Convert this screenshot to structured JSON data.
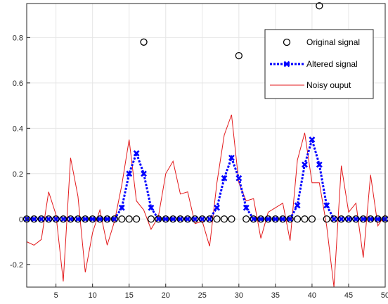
{
  "chart_data": {
    "type": "line",
    "title": "",
    "xlabel": "",
    "ylabel": "",
    "xlim": [
      1,
      50
    ],
    "ylim": [
      -0.3,
      0.95
    ],
    "grid": true,
    "legend_position": "top-right",
    "x_ticks": [
      5,
      10,
      15,
      20,
      25,
      30,
      35,
      40,
      45,
      50
    ],
    "y_ticks": [
      -0.2,
      0,
      0.2,
      0.4,
      0.6,
      0.8
    ],
    "y_tick_labels": [
      "-0.2",
      "0",
      "0.2",
      "0.4",
      "0.6",
      "0.8"
    ],
    "x": [
      1,
      2,
      3,
      4,
      5,
      6,
      7,
      8,
      9,
      10,
      11,
      12,
      13,
      14,
      15,
      16,
      17,
      18,
      19,
      20,
      21,
      22,
      23,
      24,
      25,
      26,
      27,
      28,
      29,
      30,
      31,
      32,
      33,
      34,
      35,
      36,
      37,
      38,
      39,
      40,
      41,
      42,
      43,
      44,
      45,
      46,
      47,
      48,
      49,
      50
    ],
    "series": [
      {
        "name": "Original signal",
        "style": "markers",
        "marker": "circle",
        "color": "#000000",
        "values": [
          0,
          0,
          0,
          0,
          0,
          0,
          0,
          0,
          0,
          0,
          0,
          0,
          0,
          0,
          0,
          0,
          0.78,
          0,
          0,
          0,
          0,
          0,
          0,
          0,
          0,
          0,
          0,
          0,
          0,
          0.72,
          0,
          0,
          0,
          0,
          0,
          0,
          0,
          0,
          0,
          0,
          0.94,
          0,
          0,
          0,
          0,
          0,
          0,
          0,
          0,
          0
        ]
      },
      {
        "name": "Altered signal",
        "style": "dotted-line-markers",
        "marker": "x",
        "color": "#0000ff",
        "values": [
          0,
          0,
          0,
          0,
          0,
          0,
          0,
          0,
          0,
          0,
          0,
          0,
          0,
          0.05,
          0.2,
          0.29,
          0.2,
          0.05,
          0,
          0,
          0,
          0,
          0,
          0,
          0,
          0,
          0.05,
          0.18,
          0.27,
          0.18,
          0.05,
          0,
          0,
          0,
          0,
          0,
          0,
          0.06,
          0.24,
          0.35,
          0.24,
          0.06,
          0,
          0,
          0,
          0,
          0,
          0,
          0,
          0
        ]
      },
      {
        "name": "Noisy ouput",
        "style": "line",
        "color": "#e31a1c",
        "values": [
          -0.1,
          -0.115,
          -0.09,
          0.12,
          0.02,
          -0.275,
          0.27,
          0.1,
          -0.235,
          -0.06,
          0.04,
          -0.115,
          -0.01,
          0.15,
          0.35,
          0.08,
          0.04,
          -0.045,
          0.01,
          0.2,
          0.255,
          0.11,
          0.12,
          -0.02,
          -0.01,
          -0.12,
          0.16,
          0.37,
          0.46,
          0.16,
          0.08,
          0.09,
          -0.085,
          0.03,
          0.05,
          0.07,
          -0.095,
          0.26,
          0.38,
          0.16,
          0.16,
          -0.03,
          -0.3,
          0.235,
          0.03,
          0.07,
          -0.17,
          0.195,
          -0.03,
          0.02
        ]
      }
    ]
  }
}
